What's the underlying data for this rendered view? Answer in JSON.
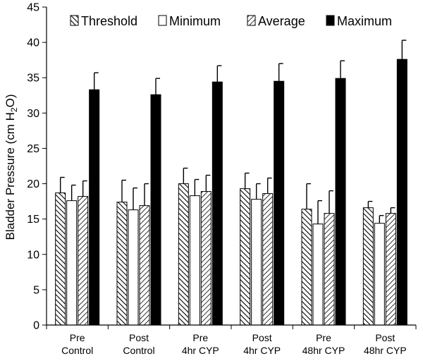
{
  "chart_data": {
    "type": "bar",
    "title": "",
    "xlabel": "",
    "ylabel": "Bladder Pressure (cm H2O)",
    "ylabel_parts": {
      "main": "Bladder Pressure (cm H",
      "sub": "2",
      "tail": "O)"
    },
    "ylim": [
      0,
      45
    ],
    "yticks": [
      0,
      5,
      10,
      15,
      20,
      25,
      30,
      35,
      40,
      45
    ],
    "categories": [
      {
        "line1": "Pre",
        "line2": "Control"
      },
      {
        "line1": "Post",
        "line2": "Control"
      },
      {
        "line1": "Pre",
        "line2": "4hr CYP"
      },
      {
        "line1": "Post",
        "line2": "4hr CYP"
      },
      {
        "line1": "Pre",
        "line2": "48hr CYP"
      },
      {
        "line1": "Post",
        "line2": "48hr CYP"
      }
    ],
    "series": [
      {
        "name": "Threshold",
        "values": [
          18.7,
          17.4,
          20.0,
          19.3,
          16.4,
          16.6
        ],
        "errors": [
          2.2,
          3.1,
          2.2,
          2.2,
          3.6,
          0.9
        ]
      },
      {
        "name": "Minimum",
        "values": [
          17.6,
          16.3,
          18.3,
          17.8,
          14.3,
          14.4
        ],
        "errors": [
          2.2,
          3.1,
          2.3,
          2.2,
          3.3,
          1.1
        ]
      },
      {
        "name": "Average",
        "values": [
          18.2,
          16.9,
          18.9,
          18.6,
          15.8,
          15.8
        ],
        "errors": [
          2.2,
          3.1,
          2.3,
          2.2,
          3.2,
          0.8
        ]
      },
      {
        "name": "Maximum",
        "values": [
          33.3,
          32.6,
          34.4,
          34.5,
          34.9,
          37.6
        ],
        "errors": [
          2.4,
          2.3,
          2.3,
          2.5,
          2.5,
          2.7
        ]
      }
    ],
    "legend": "top",
    "grid": false
  }
}
